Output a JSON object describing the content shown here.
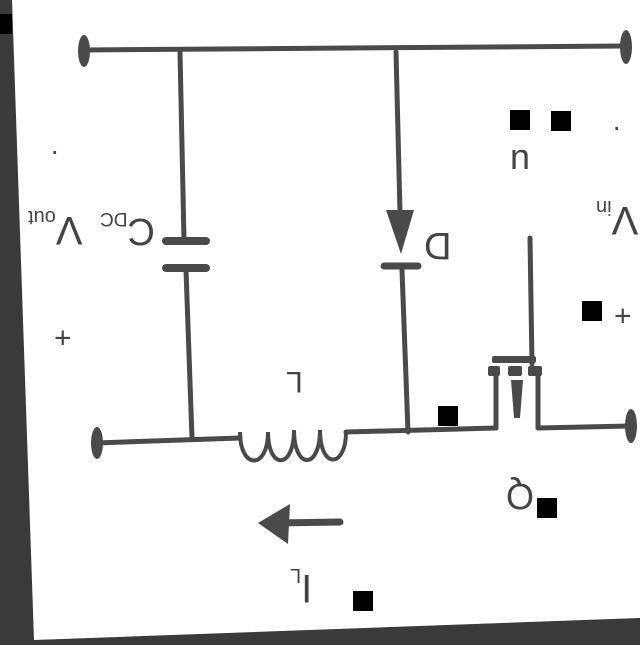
{
  "labels": {
    "v_out": "V",
    "v_out_sub": "out",
    "v_in": "V",
    "v_in_sub": "in",
    "c_dc": "C",
    "c_dc_sub": "DC",
    "diode": "D",
    "inductor": "L",
    "switch": "Q",
    "current": "I",
    "current_sub": "L",
    "duty": "u",
    "plus_out": "+",
    "plus_in": "+",
    "dot_out": "·",
    "dot_in": "·"
  },
  "colors": {
    "wire": "#4a4a4a",
    "paper": "#ffffff",
    "frame": "#3a3a3a",
    "redaction": "#000000"
  }
}
